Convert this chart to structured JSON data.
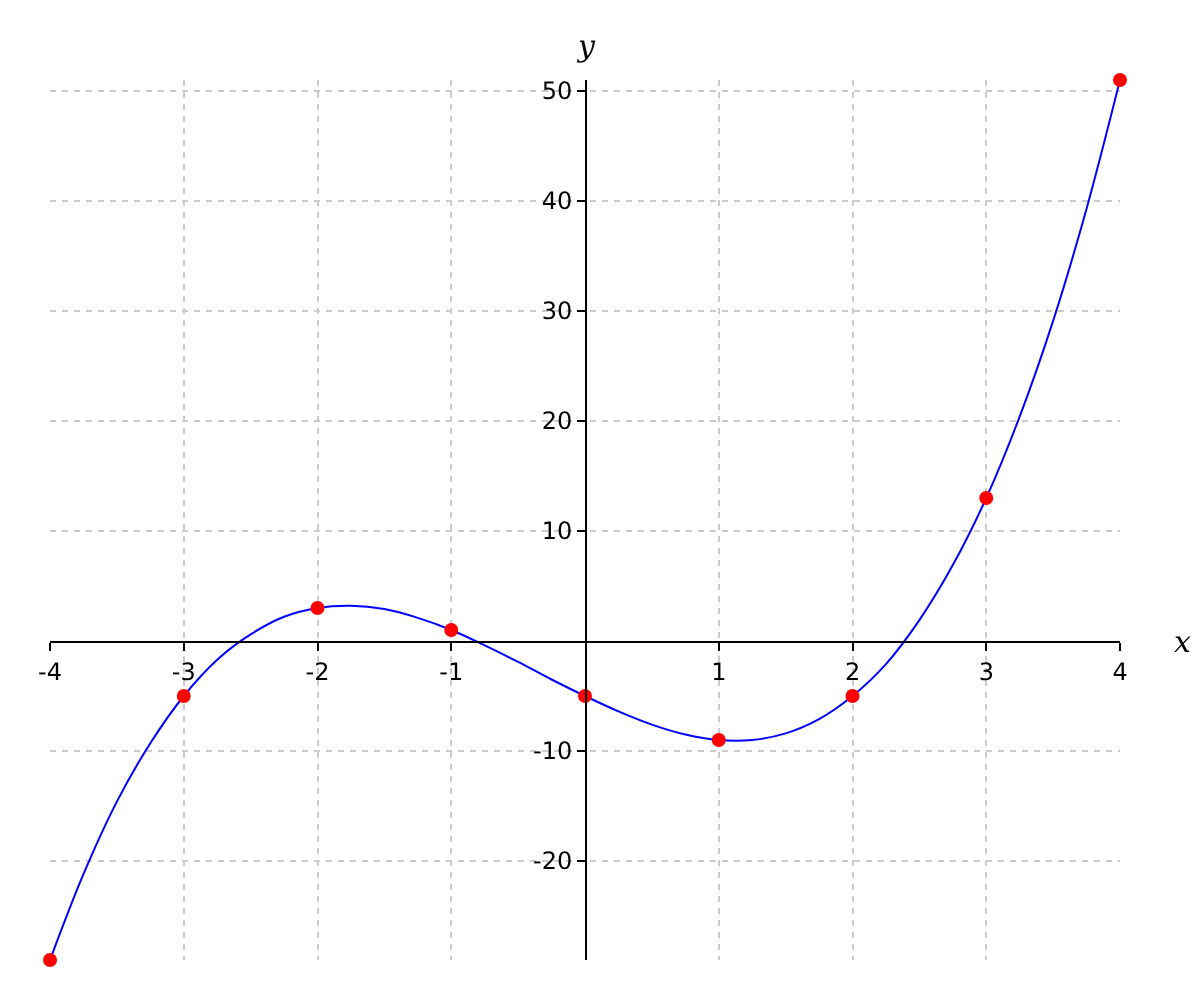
{
  "chart_data": {
    "type": "line",
    "xlabel": "x",
    "ylabel": "y",
    "xlim": [
      -4,
      4
    ],
    "ylim": [
      -29,
      51
    ],
    "xticks": [
      -4,
      -3,
      -2,
      -1,
      1,
      2,
      3,
      4
    ],
    "yticks": [
      -20,
      -10,
      10,
      20,
      30,
      40,
      50
    ],
    "grid": true,
    "series": [
      {
        "color": "#0000ff",
        "marker": "none",
        "x": [
          -4,
          -3.75,
          -3.5,
          -3.25,
          -3,
          -2.75,
          -2.5,
          -2.25,
          -2,
          -1.75,
          -1.5,
          -1.25,
          -1,
          -0.75,
          -0.5,
          -0.25,
          0,
          0.25,
          0.5,
          0.75,
          1,
          1.25,
          1.5,
          1.75,
          2,
          2.25,
          2.5,
          2.75,
          3,
          3.25,
          3.5,
          3.75,
          4
        ],
        "values": [
          -29,
          -21.2,
          -14.6,
          -9.3,
          -5,
          -1.7,
          0.6,
          2.2,
          3,
          3.2,
          2.9,
          2.1,
          1,
          -0.4,
          -1.9,
          -3.5,
          -5,
          -6.4,
          -7.6,
          -8.5,
          -9,
          -9.0,
          -8.4,
          -7.1,
          -5,
          -2.1,
          1.9,
          6.9,
          13,
          20.4,
          29.1,
          39.3,
          51
        ]
      },
      {
        "type": "scatter",
        "color": "#ff0000",
        "marker": "circle",
        "x": [
          -4,
          -3,
          -2,
          -1,
          0,
          1,
          2,
          3,
          4
        ],
        "values": [
          -29,
          -5,
          3,
          1,
          -5,
          -9,
          -5,
          13,
          51
        ]
      }
    ]
  }
}
